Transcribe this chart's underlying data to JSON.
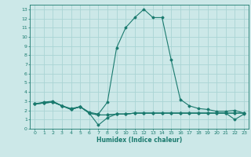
{
  "xlabel": "Humidex (Indice chaleur)",
  "ylabel": "",
  "bg_color": "#cce8e8",
  "grid_color": "#aad4d4",
  "line_color": "#1a7a6e",
  "xlim": [
    -0.5,
    23.5
  ],
  "ylim": [
    0,
    13.5
  ],
  "x_ticks": [
    0,
    1,
    2,
    3,
    4,
    5,
    6,
    7,
    8,
    9,
    10,
    11,
    12,
    13,
    14,
    15,
    16,
    17,
    18,
    19,
    20,
    21,
    22,
    23
  ],
  "y_ticks": [
    0,
    1,
    2,
    3,
    4,
    5,
    6,
    7,
    8,
    9,
    10,
    11,
    12,
    13
  ],
  "series": [
    [
      2.7,
      2.8,
      2.9,
      2.5,
      2.1,
      2.4,
      1.7,
      1.5,
      1.5,
      1.6,
      1.6,
      1.7,
      1.7,
      1.7,
      1.7,
      1.7,
      1.7,
      1.7,
      1.7,
      1.7,
      1.7,
      1.7,
      1.7,
      1.7
    ],
    [
      2.7,
      2.9,
      3.0,
      2.5,
      2.2,
      2.4,
      1.8,
      1.6,
      2.9,
      8.8,
      11.0,
      12.1,
      13.0,
      12.1,
      12.1,
      7.5,
      3.2,
      2.5,
      2.2,
      2.1,
      1.9,
      1.9,
      2.0,
      1.7
    ],
    [
      2.7,
      2.8,
      2.9,
      2.5,
      2.1,
      2.4,
      1.7,
      0.4,
      1.2,
      1.6,
      1.6,
      1.7,
      1.7,
      1.7,
      1.7,
      1.7,
      1.7,
      1.7,
      1.7,
      1.7,
      1.7,
      1.7,
      1.7,
      1.7
    ],
    [
      2.7,
      2.8,
      2.9,
      2.5,
      2.1,
      2.4,
      1.7,
      1.5,
      1.5,
      1.6,
      1.6,
      1.7,
      1.7,
      1.7,
      1.7,
      1.7,
      1.7,
      1.7,
      1.7,
      1.7,
      1.7,
      1.7,
      1.0,
      1.6
    ]
  ]
}
